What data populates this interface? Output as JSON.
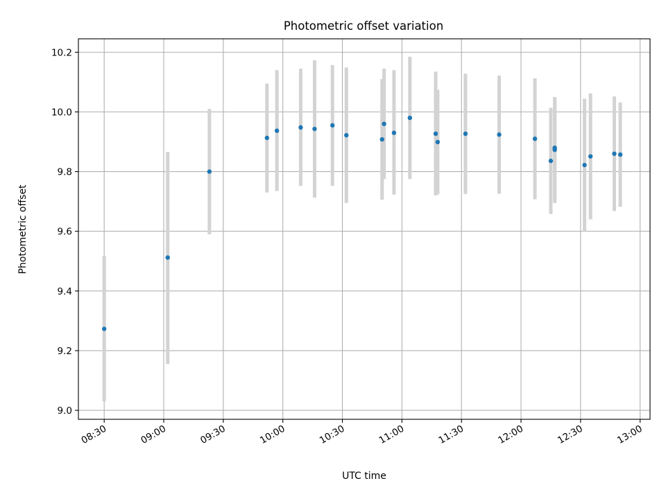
{
  "chart_data": {
    "type": "scatter",
    "title": "Photometric offset variation",
    "xlabel": "UTC time",
    "ylabel": "Photometric offset",
    "x_ticks": [
      "08:30",
      "09:00",
      "09:30",
      "10:00",
      "10:30",
      "11:00",
      "11:30",
      "12:00",
      "12:30",
      "13:00"
    ],
    "y_ticks": [
      "9.0",
      "9.2",
      "9.4",
      "9.6",
      "9.8",
      "10.0",
      "10.2"
    ],
    "x_range": [
      "08:17",
      "13:05"
    ],
    "ylim": [
      8.97,
      10.245
    ],
    "grid": true,
    "colors": {
      "points": "#1f77b4",
      "errorbars": "#d3d3d3",
      "grid": "#b0b0b0"
    },
    "series": [
      {
        "points": [
          {
            "x": "08:30",
            "y": 9.273,
            "ylow": 9.03,
            "yhigh": 9.517
          },
          {
            "x": "09:02",
            "y": 9.512,
            "ylow": 9.155,
            "yhigh": 9.866
          },
          {
            "x": "09:23",
            "y": 9.8,
            "ylow": 9.59,
            "yhigh": 10.01
          },
          {
            "x": "09:52",
            "y": 9.913,
            "ylow": 9.73,
            "yhigh": 10.095
          },
          {
            "x": "09:57",
            "y": 9.937,
            "ylow": 9.735,
            "yhigh": 10.14
          },
          {
            "x": "10:09",
            "y": 9.948,
            "ylow": 9.752,
            "yhigh": 10.145
          },
          {
            "x": "10:16",
            "y": 9.943,
            "ylow": 9.713,
            "yhigh": 10.173
          },
          {
            "x": "10:25",
            "y": 9.955,
            "ylow": 9.752,
            "yhigh": 10.157
          },
          {
            "x": "10:32",
            "y": 9.922,
            "ylow": 9.695,
            "yhigh": 10.149
          },
          {
            "x": "10:50",
            "y": 9.908,
            "ylow": 9.706,
            "yhigh": 10.11
          },
          {
            "x": "10:51",
            "y": 9.96,
            "ylow": 9.775,
            "yhigh": 10.145
          },
          {
            "x": "10:56",
            "y": 9.93,
            "ylow": 9.723,
            "yhigh": 10.14
          },
          {
            "x": "11:04",
            "y": 9.98,
            "ylow": 9.775,
            "yhigh": 10.185
          },
          {
            "x": "11:17",
            "y": 9.927,
            "ylow": 9.72,
            "yhigh": 10.135
          },
          {
            "x": "11:18",
            "y": 9.899,
            "ylow": 9.724,
            "yhigh": 10.074
          },
          {
            "x": "11:32",
            "y": 9.927,
            "ylow": 9.725,
            "yhigh": 10.128
          },
          {
            "x": "11:49",
            "y": 9.924,
            "ylow": 9.726,
            "yhigh": 10.122
          },
          {
            "x": "12:07",
            "y": 9.91,
            "ylow": 9.707,
            "yhigh": 10.113
          },
          {
            "x": "12:15",
            "y": 9.836,
            "ylow": 9.658,
            "yhigh": 10.014
          },
          {
            "x": "12:17",
            "y": 9.873,
            "ylow": 9.695,
            "yhigh": 10.05
          },
          {
            "x": "12:17",
            "y": 9.88,
            "ylow": 9.71,
            "yhigh": 10.05
          },
          {
            "x": "12:32",
            "y": 9.822,
            "ylow": 9.6,
            "yhigh": 10.044
          },
          {
            "x": "12:35",
            "y": 9.851,
            "ylow": 9.64,
            "yhigh": 10.062
          },
          {
            "x": "12:47",
            "y": 9.86,
            "ylow": 9.668,
            "yhigh": 10.052
          },
          {
            "x": "12:50",
            "y": 9.857,
            "ylow": 9.682,
            "yhigh": 10.032
          }
        ]
      }
    ]
  }
}
